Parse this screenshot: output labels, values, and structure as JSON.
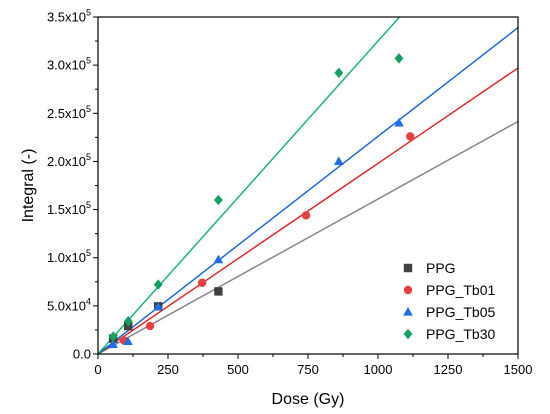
{
  "chart_data": {
    "type": "scatter",
    "xlabel": "Dose (Gy)",
    "ylabel": "Integral (-)",
    "xlim": [
      0,
      1500
    ],
    "ylim": [
      0,
      350000
    ],
    "x_ticks": [
      0,
      250,
      500,
      750,
      1000,
      1250,
      1500
    ],
    "x_tick_labels": [
      "0",
      "250",
      "500",
      "750",
      "1000",
      "1250",
      "1500"
    ],
    "y_ticks": [
      0,
      50000,
      100000,
      150000,
      200000,
      250000,
      300000,
      350000
    ],
    "y_tick_labels": [
      {
        "mantissa": "0.0",
        "exponent": ""
      },
      {
        "mantissa": "5.0x10",
        "exponent": "4"
      },
      {
        "mantissa": "1.0x10",
        "exponent": "5"
      },
      {
        "mantissa": "1.5x10",
        "exponent": "5"
      },
      {
        "mantissa": "2.0x10",
        "exponent": "5"
      },
      {
        "mantissa": "2.5x10",
        "exponent": "5"
      },
      {
        "mantissa": "3.0x10",
        "exponent": "5"
      },
      {
        "mantissa": "3.5x10",
        "exponent": "5"
      }
    ],
    "grid": false,
    "legend_position": "bottom-right",
    "series": [
      {
        "name": "PPG",
        "marker": "square",
        "color": "#404040",
        "line_color": "#808080",
        "points": [
          [
            54,
            16000
          ],
          [
            108,
            29000
          ],
          [
            215,
            49500
          ],
          [
            430,
            65000
          ]
        ],
        "fit_slope": 161
      },
      {
        "name": "PPG_Tb01",
        "marker": "circle",
        "color": "#e84040",
        "line_color": "#e02020",
        "points": [
          [
            93,
            14000
          ],
          [
            186,
            29000
          ],
          [
            372,
            74000
          ],
          [
            743,
            144000
          ],
          [
            1115,
            226000
          ]
        ],
        "fit_slope": 198
      },
      {
        "name": "PPG_Tb05",
        "marker": "triangle",
        "color": "#1e6ee8",
        "line_color": "#1060d8",
        "points": [
          [
            54,
            10000
          ],
          [
            107,
            13000
          ],
          [
            215,
            49000
          ],
          [
            430,
            98000
          ],
          [
            860,
            200000
          ],
          [
            1075,
            240000
          ]
        ],
        "fit_slope": 226
      },
      {
        "name": "PPG_Tb30",
        "marker": "diamond",
        "color": "#12a060",
        "line_color": "#10b070",
        "points": [
          [
            54,
            18000
          ],
          [
            108,
            34000
          ],
          [
            215,
            72000
          ],
          [
            430,
            160000
          ],
          [
            860,
            292000
          ],
          [
            1075,
            307000
          ]
        ],
        "fit_slope": 325
      }
    ]
  }
}
